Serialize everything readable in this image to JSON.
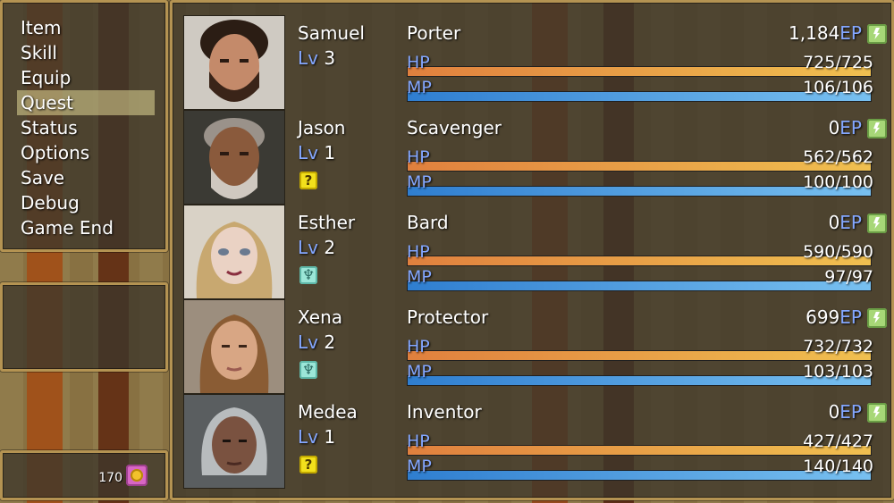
{
  "menu": {
    "commands": [
      "Item",
      "Skill",
      "Equip",
      "Quest",
      "Status",
      "Options",
      "Save",
      "Debug",
      "Game End"
    ],
    "selected_index": 3
  },
  "gold": {
    "value": "170",
    "icon": "coin-icon"
  },
  "party": [
    {
      "name": "Samuel",
      "level_label": "Lv",
      "level": "3",
      "class": "Porter",
      "ep": "1,184",
      "ep_unit": "EP",
      "hp_label": "HP",
      "hp": "725/725",
      "hp_rate": 1.0,
      "mp_label": "MP",
      "mp": "106/106",
      "mp_rate": 1.0,
      "state_icon": null
    },
    {
      "name": "Jason",
      "level_label": "Lv",
      "level": "1",
      "class": "Scavenger",
      "ep": "0",
      "ep_unit": "EP",
      "hp_label": "HP",
      "hp": "562/562",
      "hp_rate": 1.0,
      "mp_label": "MP",
      "mp": "100/100",
      "mp_rate": 1.0,
      "state_icon": "question-mark-icon"
    },
    {
      "name": "Esther",
      "level_label": "Lv",
      "level": "2",
      "class": "Bard",
      "ep": "0",
      "ep_unit": "EP",
      "hp_label": "HP",
      "hp": "590/590",
      "hp_rate": 1.0,
      "mp_label": "MP",
      "mp": "97/97",
      "mp_rate": 1.0,
      "state_icon": "spirit-icon"
    },
    {
      "name": "Xena",
      "level_label": "Lv",
      "level": "2",
      "class": "Protector",
      "ep": "699",
      "ep_unit": "EP",
      "hp_label": "HP",
      "hp": "732/732",
      "hp_rate": 1.0,
      "mp_label": "MP",
      "mp": "103/103",
      "mp_rate": 1.0,
      "state_icon": "spirit-icon"
    },
    {
      "name": "Medea",
      "level_label": "Lv",
      "level": "1",
      "class": "Inventor",
      "ep": "0",
      "ep_unit": "EP",
      "hp_label": "HP",
      "hp": "427/427",
      "hp_rate": 1.0,
      "mp_label": "MP",
      "mp": "140/140",
      "mp_rate": 1.0,
      "state_icon": "question-mark-icon"
    }
  ],
  "colors": {
    "window_border": "#b49352",
    "selection": "#e1d796",
    "system_blue": "#84a7ff",
    "hp_gauge": "#e0803e",
    "mp_gauge": "#2f7ed0"
  }
}
